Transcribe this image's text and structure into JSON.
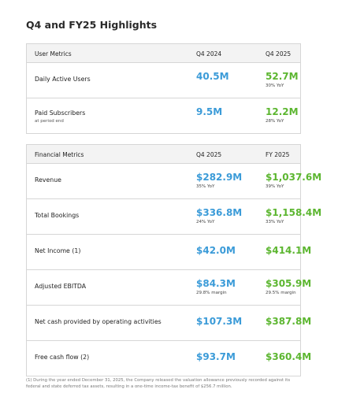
{
  "title": "Q4 and FY25 Highlights",
  "tables": [
    {
      "headers": [
        "User Metrics",
        "Q4 2024",
        "Q4 2025"
      ],
      "rows": [
        {
          "label": "Daily Active Users",
          "cells": [
            {
              "value": "40.5M"
            },
            {
              "value": "52.7M",
              "note": "30% YoY"
            }
          ]
        },
        {
          "label": "Paid Subscribers",
          "sublabel": "at period end",
          "cells": [
            {
              "value": "9.5M"
            },
            {
              "value": "12.2M",
              "note": "28% YoY"
            }
          ]
        }
      ]
    },
    {
      "headers": [
        "Financial Metrics",
        "Q4 2025",
        "FY 2025"
      ],
      "rows": [
        {
          "label": "Revenue",
          "cells": [
            {
              "value": "$282.9M",
              "note": "35% YoY"
            },
            {
              "value": "$1,037.6M",
              "note": "39% YoY"
            }
          ]
        },
        {
          "label": "Total Bookings",
          "cells": [
            {
              "value": "$336.8M",
              "note": "24% YoY"
            },
            {
              "value": "$1,158.4M",
              "note": "33% YoY"
            }
          ]
        },
        {
          "label": "Net Income (1)",
          "cells": [
            {
              "value": "$42.0M"
            },
            {
              "value": "$414.1M"
            }
          ]
        },
        {
          "label": "Adjusted EBITDA",
          "cells": [
            {
              "value": "$84.3M",
              "note": "29.8% margin"
            },
            {
              "value": "$305.9M",
              "note": "29.5% margin"
            }
          ]
        },
        {
          "label": "Net cash provided by operating activities",
          "cells": [
            {
              "value": "$107.3M"
            },
            {
              "value": "$387.8M"
            }
          ]
        },
        {
          "label": "Free cash flow (2)",
          "cells": [
            {
              "value": "$93.7M"
            },
            {
              "value": "$360.4M"
            }
          ]
        }
      ]
    }
  ],
  "footnote": "(1) During the year ended December 31, 2025, the Company released the valuation allowance previously recorded against its federal and state deferred tax assets, resulting in a one-time income-tax benefit of $256.7 million."
}
